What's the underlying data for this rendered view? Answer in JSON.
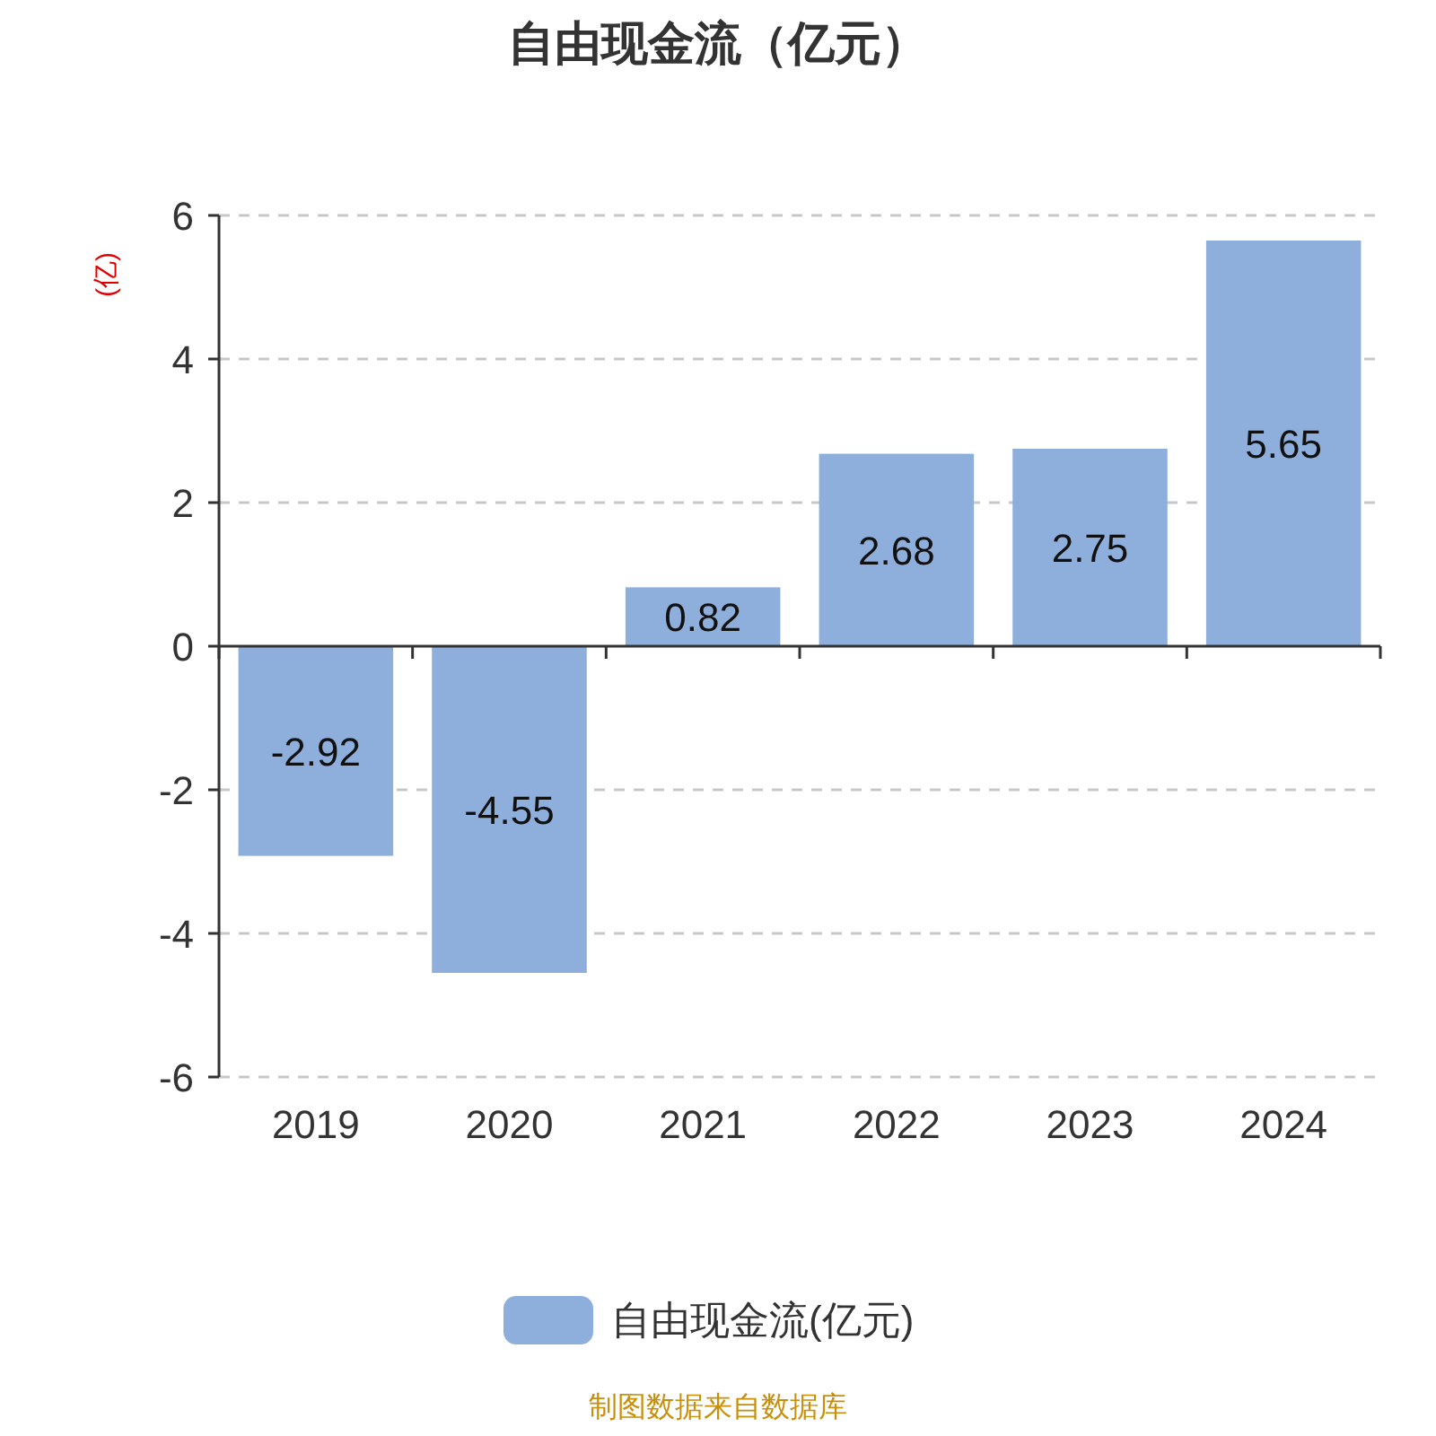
{
  "chart_data": {
    "type": "bar",
    "title": "自由现金流（亿元）",
    "ylabel": "(亿)",
    "categories": [
      "2019",
      "2020",
      "2021",
      "2022",
      "2023",
      "2024"
    ],
    "series": [
      {
        "name": "自由现金流(亿元)",
        "color": "#8eaedb",
        "values": [
          -2.92,
          -4.55,
          0.82,
          2.68,
          2.75,
          5.65
        ]
      }
    ],
    "ylim": [
      -6,
      6
    ],
    "yticks": [
      -6,
      -4,
      -2,
      0,
      2,
      4,
      6
    ],
    "grid": "y",
    "legend": "bottom",
    "data_labels": true,
    "annotations": [
      "制图数据来自数据库"
    ]
  }
}
